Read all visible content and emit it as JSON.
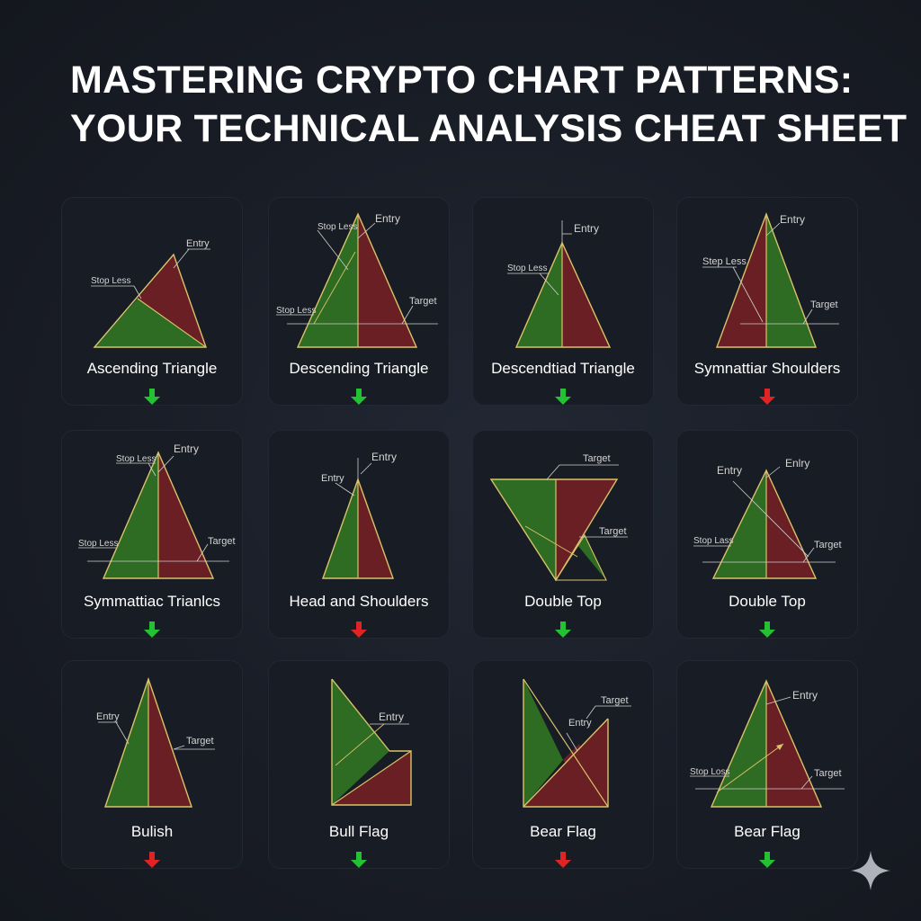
{
  "title": {
    "line1": "MASTERING CRYPTO CHART PATTERNS:",
    "line2": "YOUR TECHNICAL ANALYSIS CHEAT SHEET"
  },
  "colors": {
    "background": "#1a1e27",
    "card": "#181c24",
    "green_fill": "#2e6b23",
    "red_fill": "#6a1f24",
    "outline": "#d9c36a",
    "arrow_green": "#22c233",
    "arrow_red": "#e02424"
  },
  "cards": [
    {
      "name": "Ascending Triangle",
      "arrow": "green",
      "arrow_icon": "arrow-down-green-icon",
      "annotations": {
        "a": "Entry",
        "b": "Stop Less"
      }
    },
    {
      "name": "Descending Triangle",
      "arrow": "green",
      "arrow_icon": "arrow-down-green-icon",
      "annotations": {
        "a": "Stop Less",
        "b": "Entry",
        "c": "Stop Less",
        "d": "Target"
      }
    },
    {
      "name": "Descendtiad Triangle",
      "arrow": "green",
      "arrow_icon": "arrow-down-green-icon",
      "annotations": {
        "a": "Entry",
        "b": "Stop Less"
      }
    },
    {
      "name": "Symnattiar Shoulders",
      "arrow": "red",
      "arrow_icon": "arrow-down-red-icon",
      "annotations": {
        "a": "Entry",
        "b": "Step Less",
        "c": "Target"
      }
    },
    {
      "name": "Symmattiac Trianlcs",
      "arrow": "green",
      "arrow_icon": "arrow-down-green-icon",
      "annotations": {
        "a": "Stop Less",
        "b": "Entry",
        "c": "Stop Less",
        "d": "Target"
      }
    },
    {
      "name": "Head and Shoulders",
      "arrow": "red",
      "arrow_icon": "arrow-down-red-icon",
      "annotations": {
        "a": "Entry",
        "b": "Entry"
      }
    },
    {
      "name": "Double Top",
      "arrow": "green",
      "arrow_icon": "arrow-down-green-icon",
      "annotations": {
        "a": "Target",
        "b": "Target"
      }
    },
    {
      "name": "Double Top",
      "arrow": "green",
      "arrow_icon": "arrow-down-green-icon",
      "annotations": {
        "a": "Entry",
        "b": "Enlry",
        "c": "Stop Lass",
        "d": "Target"
      }
    },
    {
      "name": "Bulish",
      "arrow": "red",
      "arrow_icon": "arrow-down-red-icon",
      "annotations": {
        "a": "Entry",
        "b": "Target"
      }
    },
    {
      "name": "Bull Flag",
      "arrow": "green",
      "arrow_icon": "arrow-down-green-icon",
      "annotations": {
        "a": "Entry"
      }
    },
    {
      "name": "Bear Flag",
      "arrow": "red",
      "arrow_icon": "arrow-down-red-icon",
      "annotations": {
        "a": "Target",
        "b": "Entry"
      }
    },
    {
      "name": "Bear Flag",
      "arrow": "green",
      "arrow_icon": "arrow-down-green-icon",
      "annotations": {
        "a": "Entry",
        "b": "Stop Loss",
        "c": "Target"
      }
    }
  ],
  "watermark_icon": "sparkle-icon"
}
